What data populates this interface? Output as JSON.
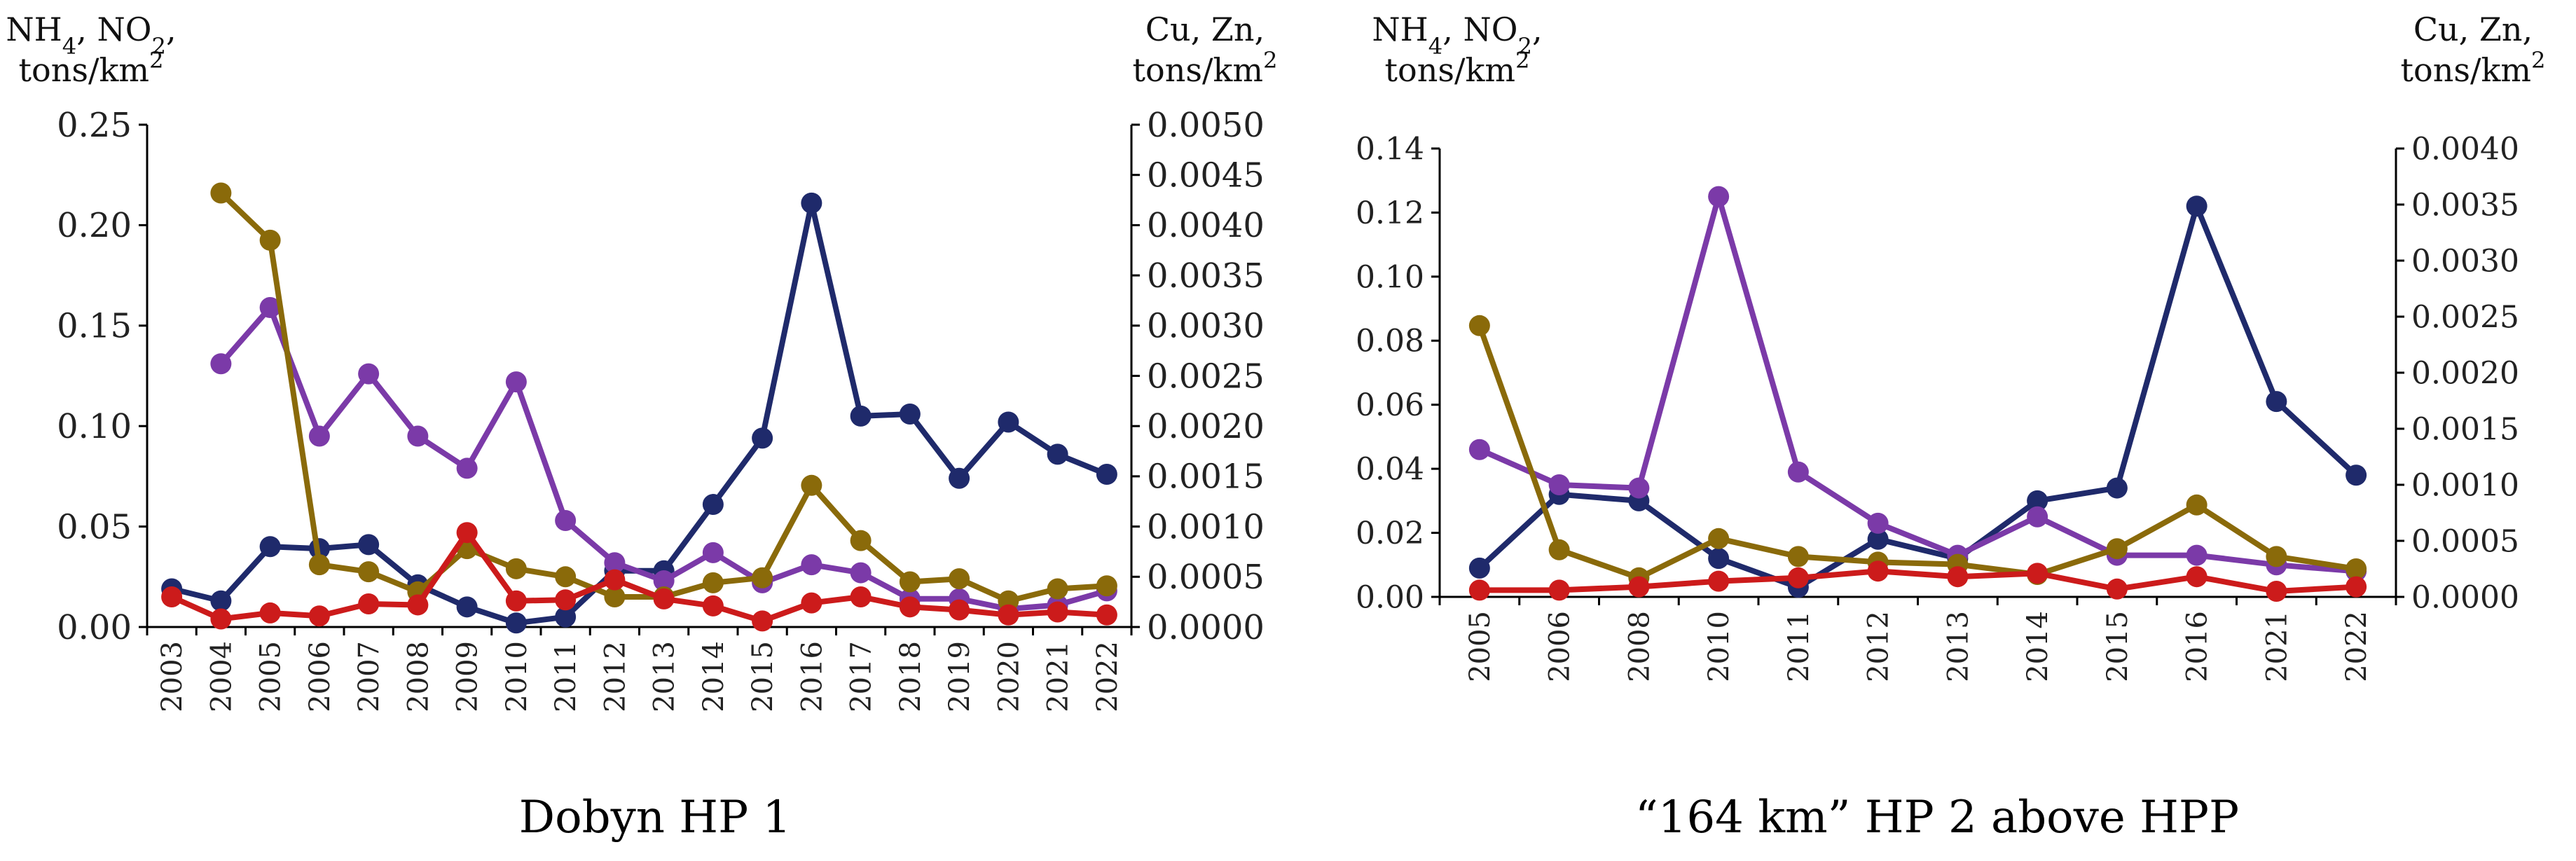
{
  "chart_data": [
    {
      "type": "line",
      "caption": "Dobyn HP 1",
      "left_axis_title": [
        "NH₄, NO₂,",
        "tons/km²"
      ],
      "right_axis_title": [
        "Cu, Zn,",
        "tons/km²"
      ],
      "left_ticks": [
        "0.00",
        "0.05",
        "0.10",
        "0.15",
        "0.20",
        "0.25"
      ],
      "right_ticks": [
        "0.0000",
        "0.0005",
        "0.0010",
        "0.0015",
        "0.0020",
        "0.0025",
        "0.0030",
        "0.0035",
        "0.0040",
        "0.0045",
        "0.0050"
      ],
      "ylim_left": [
        0,
        0.25
      ],
      "ylim_right": [
        0,
        0.005
      ],
      "categories": [
        "2003",
        "2004",
        "2005",
        "2006",
        "2007",
        "2008",
        "2009",
        "2010",
        "2011",
        "2012",
        "2013",
        "2014",
        "2015",
        "2016",
        "2017",
        "2018",
        "2019",
        "2020",
        "2021",
        "2022"
      ],
      "series": [
        {
          "axis": "left",
          "color": "#1f2a6b",
          "values": [
            0.019,
            0.013,
            0.04,
            0.039,
            0.041,
            0.021,
            0.01,
            0.002,
            0.005,
            0.028,
            0.028,
            0.061,
            0.094,
            0.211,
            0.105,
            0.106,
            0.074,
            0.102,
            0.086,
            0.076
          ]
        },
        {
          "axis": "left",
          "color": "#7b3aa8",
          "values": [
            null,
            0.131,
            0.159,
            0.095,
            0.126,
            0.095,
            0.079,
            0.122,
            0.053,
            0.032,
            0.023,
            0.037,
            0.022,
            0.031,
            0.027,
            0.014,
            0.014,
            0.009,
            0.011,
            0.018
          ]
        },
        {
          "axis": "right",
          "color": "#8a6a0a",
          "values": [
            null,
            0.00432,
            0.00385,
            0.00062,
            0.00055,
            0.00035,
            0.00078,
            0.00058,
            0.0005,
            0.0003,
            0.0003,
            0.00044,
            0.00049,
            0.00141,
            0.00086,
            0.00045,
            0.00048,
            0.00026,
            0.00038,
            0.00041
          ]
        },
        {
          "axis": "right",
          "color": "#cc1b1b",
          "values": [
            0.0003,
            8e-05,
            0.00014,
            0.00011,
            0.00023,
            0.00022,
            0.00094,
            0.00026,
            0.00027,
            0.00047,
            0.00028,
            0.00021,
            6e-05,
            0.00024,
            0.0003,
            0.0002,
            0.00017,
            0.00012,
            0.00015,
            0.00012
          ]
        }
      ]
    },
    {
      "type": "line",
      "caption": "“164 km” HP 2 above HPP",
      "left_axis_title": [
        "NH₄, NO₂,",
        "tons/km²"
      ],
      "right_axis_title": [
        "Cu, Zn,",
        "tons/km²"
      ],
      "left_ticks": [
        "0.00",
        "0.02",
        "0.04",
        "0.06",
        "0.08",
        "0.10",
        "0.12",
        "0.14"
      ],
      "right_ticks": [
        "0.0000",
        "0.0005",
        "0.0010",
        "0.0015",
        "0.0020",
        "0.0025",
        "0.0030",
        "0.0035",
        "0.0040"
      ],
      "ylim_left": [
        0,
        0.14
      ],
      "ylim_right": [
        0,
        0.004
      ],
      "categories": [
        "2005",
        "2006",
        "2008",
        "2010",
        "2011",
        "2012",
        "2013",
        "2014",
        "2015",
        "2016",
        "2021",
        "2022"
      ],
      "series": [
        {
          "axis": "left",
          "color": "#1f2a6b",
          "values": [
            0.009,
            0.032,
            0.03,
            0.012,
            0.003,
            0.018,
            0.012,
            0.03,
            0.034,
            0.122,
            0.061,
            0.038
          ]
        },
        {
          "axis": "left",
          "color": "#7b3aa8",
          "values": [
            0.046,
            0.035,
            0.034,
            0.125,
            0.039,
            0.023,
            0.013,
            0.025,
            0.013,
            0.013,
            0.01,
            0.008
          ]
        },
        {
          "axis": "right",
          "color": "#8a6a0a",
          "values": [
            0.00242,
            0.00042,
            0.00017,
            0.00052,
            0.00036,
            0.00031,
            0.00029,
            0.0002,
            0.00043,
            0.00082,
            0.00036,
            0.00025
          ]
        },
        {
          "axis": "right",
          "color": "#cc1b1b",
          "values": [
            6e-05,
            6e-05,
            9e-05,
            0.00014,
            0.00017,
            0.00023,
            0.00018,
            0.00021,
            7e-05,
            0.00018,
            5e-05,
            9e-05
          ]
        }
      ]
    }
  ]
}
